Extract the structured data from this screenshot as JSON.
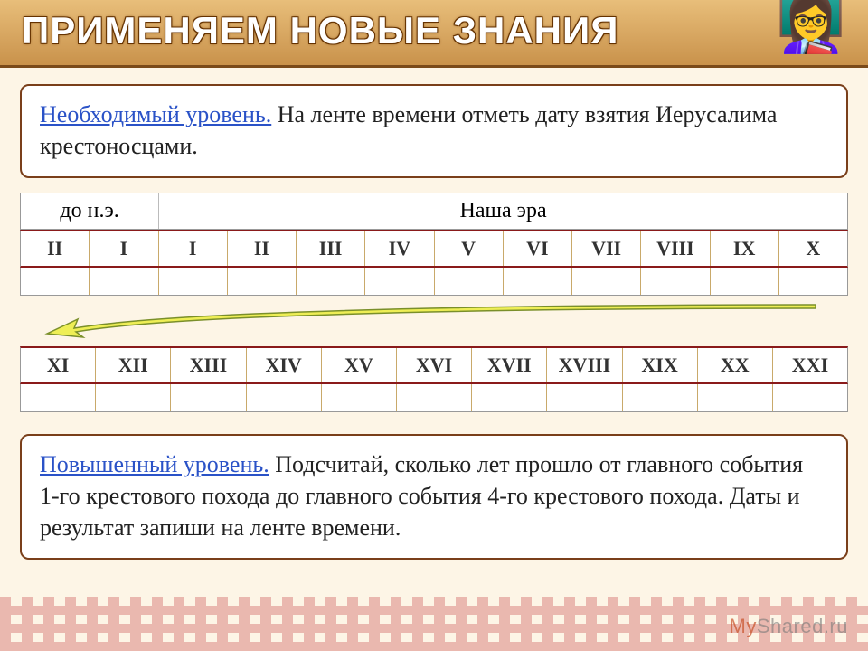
{
  "title": "ПРИМЕНЯЕМ НОВЫЕ ЗНАНИЯ",
  "card1": {
    "lead": "Необходимый уровень.",
    "rest": " На ленте времени отметь дату взятия Иерусалима крестоносцами."
  },
  "timeline1": {
    "header_left": "до н.э.",
    "header_right": "Наша эра",
    "header_left_span": 2,
    "header_right_span": 10,
    "numerals": [
      "II",
      "I",
      "I",
      "II",
      "III",
      "IV",
      "V",
      "VI",
      "VII",
      "VIII",
      "IX",
      "X"
    ],
    "blank_count": 12,
    "border_accent": "#8a1a1a",
    "cell_border": "#c9a96a"
  },
  "arrow": {
    "color_fill": "#eeee55",
    "color_stroke": "#7a8f2a"
  },
  "timeline2": {
    "numerals": [
      "XI",
      "XII",
      "XIII",
      "XIV",
      "XV",
      "XVI",
      "XVII",
      "XVIII",
      "XIX",
      "XX",
      "XXI"
    ],
    "blank_count": 11,
    "border_accent": "#8a1a1a",
    "cell_border": "#c9a96a"
  },
  "card2": {
    "lead": "Повышенный уровень.",
    "rest": " Подсчитай, сколько лет прошло от главного события 1-го крестового похода до главного события 4-го крестового похода. Даты и результат запиши на ленте времени."
  },
  "watermark_my": "My",
  "watermark_rest": "Shared.ru",
  "colors": {
    "page_bg": "#fdf5e6",
    "title_grad_top": "#e8be7a",
    "title_grad_bot": "#c9924b",
    "title_text": "#ffffff",
    "title_stroke": "#663300",
    "card_border": "#7a3f1a",
    "lead_color": "#2a52c7",
    "pattern_color": "#c94a4a"
  },
  "mascot_emoji": "👩‍🏫"
}
